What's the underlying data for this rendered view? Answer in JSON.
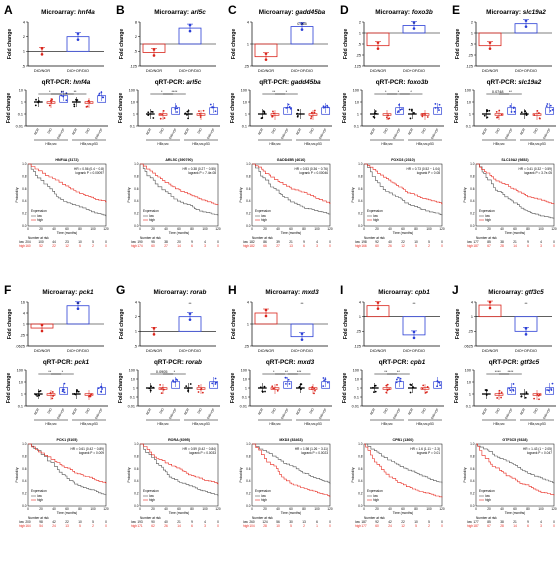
{
  "colors": {
    "red": "#d9251c",
    "blue": "#2b3fd6",
    "km_low": "#555555",
    "km_high": "#e8281e",
    "black": "#000000"
  },
  "microarray_prefix": "Microarray: ",
  "qrt_prefix": "qRT-PCR: ",
  "fold_change_label": "Fold change",
  "bar_categories": [
    "DIO/NOR",
    "DIO+OF/DIO"
  ],
  "qrt_groups": [
    "NOR",
    "DIO",
    "DIO+OF",
    "NOR",
    "DIO",
    "DIO+OF"
  ],
  "qrt_strains": [
    "HBx,src",
    "HBx,src,p53"
  ],
  "km_xlabel": "Time (months)",
  "km_ylabel": "Probability",
  "km_legend_title": "Expression",
  "km_legend_items": [
    "low",
    "high"
  ],
  "km_number_at_risk": "Number at risk",
  "km_xticks": [
    "0",
    "20",
    "40",
    "60",
    "80",
    "100",
    "120"
  ],
  "km_yticks": [
    "0.0",
    "0.2",
    "0.4",
    "0.6",
    "0.8",
    "1.0"
  ],
  "chart_data": [
    {
      "letter": "A",
      "gene": "hnf4a",
      "microarray": {
        "values": [
          1,
          2
        ],
        "yticks": [
          "4",
          "2",
          "1",
          ".5"
        ]
      },
      "qrt": {
        "yticks": [
          "10",
          "1",
          "0.1",
          "0.01"
        ],
        "sig": [
          "*",
          "**",
          "**"
        ]
      },
      "km": {
        "title": "HNF4A (3172)",
        "hr": "HR = 0.56 (0.4 − 0.8)",
        "logrank": "logrank P = 0.00097",
        "low_nums": [
          "204",
          "100",
          "44",
          "23",
          "10",
          "5",
          "0"
        ],
        "high_nums": [
          "160",
          "52",
          "22",
          "12",
          "5",
          "2",
          "0"
        ]
      }
    },
    {
      "letter": "B",
      "gene": "arl5c",
      "microarray": {
        "values": [
          0.45,
          4.5
        ],
        "yticks": [
          "8",
          "2",
          ".5",
          ".125"
        ]
      },
      "qrt": {
        "yticks": [
          "100",
          "10",
          "1",
          "0.1"
        ],
        "sig": [
          "*",
          "****"
        ]
      },
      "km": {
        "title": "ARL5C (390790)",
        "hr": "HR = 0.38 (0.27 − 0.55)",
        "logrank": "logrank P = 7.4e-08",
        "low_nums": [
          "190",
          "95",
          "38",
          "20",
          "9",
          "4",
          "0"
        ],
        "high_nums": [
          "174",
          "60",
          "27",
          "14",
          "6",
          "3",
          "0"
        ]
      }
    },
    {
      "letter": "C",
      "gene": "gadd45ba",
      "microarray": {
        "values": [
          0.45,
          3.0
        ],
        "yticks": [
          "4",
          "1",
          ".25"
        ],
        "sig": [
          "0.065"
        ]
      },
      "qrt": {
        "yticks": [
          "100",
          "10",
          "1",
          "0.1"
        ],
        "sig": [
          "**",
          "*"
        ]
      },
      "km": {
        "title": "GADD45B (4616)",
        "hr": "HR = 0.53 (0.36 − 0.76)",
        "logrank": "logrank P = 0.00046",
        "low_nums": [
          "182",
          "86",
          "39",
          "21",
          "9",
          "4",
          "0"
        ],
        "high_nums": [
          "182",
          "66",
          "27",
          "13",
          "6",
          "3",
          "0"
        ]
      }
    },
    {
      "letter": "D",
      "gene": "foxo3b",
      "microarray": {
        "values": [
          0.45,
          1.6
        ],
        "yticks": [
          "2",
          "1",
          ".5",
          ".25",
          ".125"
        ],
        "sig": [
          "*"
        ]
      },
      "qrt": {
        "yticks": [
          "100",
          "10",
          "1",
          "0.1"
        ],
        "sig": [
          "*",
          "*",
          "*"
        ]
      },
      "km": {
        "title": "FOXO3 (2310)",
        "hr": "HR = 0.73 (0.52 − 1.04)",
        "logrank": "logrank P = 0.08",
        "low_nums": [
          "198",
          "92",
          "40",
          "22",
          "10",
          "5",
          "0"
        ],
        "high_nums": [
          "166",
          "60",
          "26",
          "12",
          "5",
          "2",
          "0"
        ]
      }
    },
    {
      "letter": "E",
      "gene": "slc19a2",
      "microarray": {
        "values": [
          0.45,
          1.8
        ],
        "yticks": [
          "2",
          "1",
          ".5",
          ".25",
          ".125"
        ]
      },
      "qrt": {
        "yticks": [
          "100",
          "10",
          "1",
          "0.1"
        ],
        "sig": [
          "0.0748",
          "**"
        ]
      },
      "km": {
        "title": "SLC19A2 (9852)",
        "hr": "HR = 0.41 (0.32 − 0.59)",
        "logrank": "logrank P = 3.7e-05",
        "low_nums": [
          "177",
          "85",
          "38",
          "21",
          "9",
          "4",
          "0"
        ],
        "high_nums": [
          "187",
          "67",
          "28",
          "14",
          "6",
          "3",
          "0"
        ]
      }
    },
    {
      "letter": "F",
      "gene": "pck1",
      "microarray": {
        "values": [
          0.6,
          10
        ],
        "yticks": [
          "16",
          "4",
          "1",
          ".25",
          ".0625"
        ],
        "sig": [
          "**"
        ]
      },
      "qrt": {
        "yticks": [
          "100",
          "10",
          "1",
          "0.1"
        ],
        "sig": [
          "**",
          "*"
        ]
      },
      "km": {
        "title": "PCK1 (5105)",
        "hr": "HR = 0.61 (0.42 − 0.89)",
        "logrank": "logrank P = 0.009",
        "low_nums": [
          "200",
          "98",
          "42",
          "22",
          "10",
          "5",
          "0"
        ],
        "high_nums": [
          "164",
          "54",
          "24",
          "13",
          "5",
          "2",
          "0"
        ]
      }
    },
    {
      "letter": "G",
      "gene": "rorab",
      "microarray": {
        "values": [
          1,
          2
        ],
        "yticks": [
          "4",
          "2",
          "1",
          ".5"
        ],
        "sig": [
          "**"
        ]
      },
      "qrt": {
        "yticks": [
          "100",
          "10",
          "1",
          "0.1",
          "0.01"
        ],
        "sig": [
          "0.0905",
          "*"
        ]
      },
      "km": {
        "title": "RORA (6095)",
        "hr": "HR = 0.59 (0.42 − 0.84)",
        "logrank": "logrank P = 0.0033",
        "low_nums": [
          "193",
          "90",
          "40",
          "21",
          "9",
          "4",
          "0"
        ],
        "high_nums": [
          "171",
          "62",
          "26",
          "14",
          "6",
          "3",
          "0"
        ]
      }
    },
    {
      "letter": "H",
      "gene": "mxd3",
      "microarray": {
        "values": [
          2,
          0.45
        ],
        "yticks": [
          "4",
          "1",
          ".25"
        ],
        "sig": [
          "**"
        ]
      },
      "qrt": {
        "yticks": [
          "100",
          "10",
          "1",
          "0.1",
          "0.01"
        ],
        "sig": [
          "*",
          "**",
          "***"
        ]
      },
      "km": {
        "title": "MXD3 (83463)",
        "hr": "HR = 1.98 (1.26 − 3.11)",
        "logrank": "logrank P = 0.0023",
        "low_nums": [
          "260",
          "124",
          "56",
          "30",
          "13",
          "6",
          "0"
        ],
        "high_nums": [
          "104",
          "28",
          "10",
          "5",
          "2",
          "1",
          "0"
        ]
      }
    },
    {
      "letter": "I",
      "gene": "cpb1",
      "microarray": {
        "values": [
          3,
          0.3
        ],
        "yticks": [
          "4",
          "1",
          ".25",
          ".125"
        ],
        "sig": [
          "**"
        ]
      },
      "qrt": {
        "yticks": [
          "100",
          "10",
          "1",
          "0.1",
          "0.01"
        ],
        "sig": [
          "**",
          "**"
        ]
      },
      "km": {
        "title": "CPB1 (1360)",
        "hr": "HR = 1.6 (1.11 − 2.3)",
        "logrank": "logrank P = 0.01",
        "low_nums": [
          "187",
          "92",
          "42",
          "22",
          "10",
          "5",
          "0"
        ],
        "high_nums": [
          "177",
          "60",
          "24",
          "12",
          "5",
          "2",
          "0"
        ]
      }
    },
    {
      "letter": "J",
      "gene": "gtf3c5",
      "microarray": {
        "values": [
          3,
          0.25
        ],
        "yticks": [
          "4",
          "1",
          ".25",
          ".0625"
        ],
        "sig": [
          "**"
        ]
      },
      "qrt": {
        "yticks": [
          "100",
          "10",
          "1",
          "0.1"
        ],
        "sig": [
          "****",
          "****"
        ]
      },
      "km": {
        "title": "GTF3C5 (9328)",
        "hr": "HR = 1.43 (1 − 2.05)",
        "logrank": "logrank P = 0.047",
        "low_nums": [
          "177",
          "85",
          "38",
          "21",
          "9",
          "4",
          "0"
        ],
        "high_nums": [
          "187",
          "67",
          "28",
          "14",
          "6",
          "3",
          "0"
        ]
      }
    }
  ]
}
